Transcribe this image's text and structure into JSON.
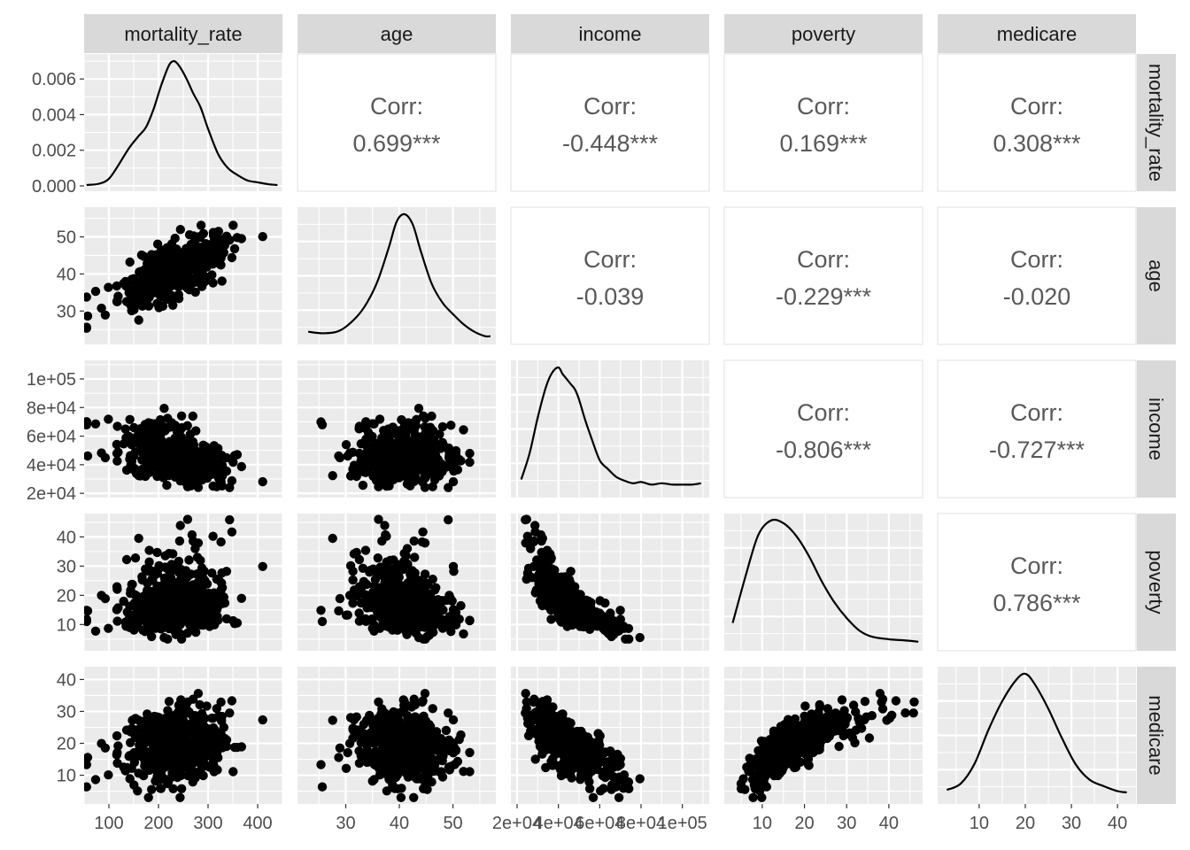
{
  "chart_data": {
    "type": "scatter-matrix",
    "variables": [
      "mortality_rate",
      "age",
      "income",
      "poverty",
      "medicare"
    ],
    "colors": {
      "panel_bg": "#ebebeb",
      "grid": "#ffffff",
      "strip_bg": "#d9d9d9",
      "point": "#000000",
      "corr_text": "#595959",
      "tick_text": "#4d4d4d"
    },
    "axes": {
      "mortality_rate": {
        "range": [
          50,
          450
        ],
        "ticks": [
          100,
          200,
          300,
          400
        ],
        "tick_labels": [
          "100",
          "200",
          "300",
          "400"
        ]
      },
      "age": {
        "range": [
          21,
          58
        ],
        "ticks": [
          30,
          40,
          50
        ],
        "tick_labels": [
          "30",
          "40",
          "50"
        ]
      },
      "income": {
        "range": [
          17000,
          113000
        ],
        "ticks": [
          20000,
          40000,
          60000,
          80000,
          100000
        ],
        "tick_labels": [
          "2e+04",
          "4e+04",
          "6e+04",
          "8e+04",
          "1e+05"
        ]
      },
      "poverty": {
        "range": [
          1,
          48
        ],
        "ticks": [
          10,
          20,
          30,
          40
        ],
        "tick_labels": [
          "10",
          "20",
          "30",
          "40"
        ]
      },
      "medicare": {
        "range": [
          1,
          44
        ],
        "ticks": [
          10,
          20,
          30,
          40
        ],
        "tick_labels": [
          "10",
          "20",
          "30",
          "40"
        ]
      }
    },
    "density_axis": {
      "range": [
        -0.0003,
        0.0074
      ],
      "ticks": [
        0,
        0.002,
        0.004,
        0.006
      ],
      "tick_labels": [
        "0.000",
        "0.002",
        "0.004",
        "0.006"
      ]
    },
    "densities": {
      "mortality_rate": {
        "x": [
          55,
          80,
          100,
          120,
          140,
          160,
          175,
          190,
          205,
          220,
          230,
          240,
          255,
          270,
          285,
          300,
          320,
          340,
          360,
          380,
          400,
          420,
          440
        ],
        "y": [
          5e-05,
          0.00012,
          0.0004,
          0.0012,
          0.0021,
          0.0028,
          0.0033,
          0.0043,
          0.0056,
          0.0067,
          0.007,
          0.0068,
          0.0061,
          0.0052,
          0.0044,
          0.0032,
          0.0018,
          0.001,
          0.0006,
          0.0003,
          0.0002,
          0.0001,
          5e-05
        ]
      },
      "age": {
        "x": [
          23,
          26,
          29,
          32,
          34,
          36,
          38,
          39.5,
          41,
          42.5,
          44,
          46,
          48,
          50,
          52,
          54,
          56,
          57
        ],
        "y": [
          0.05,
          0.04,
          0.06,
          0.15,
          0.25,
          0.4,
          0.62,
          0.8,
          0.85,
          0.78,
          0.6,
          0.38,
          0.25,
          0.17,
          0.1,
          0.05,
          0.02,
          0.02
        ]
      },
      "income": {
        "x": [
          22000,
          26000,
          30000,
          34000,
          37000,
          40000,
          42000,
          44000,
          46000,
          48000,
          50000,
          53000,
          56000,
          60000,
          64000,
          68000,
          72000,
          76000,
          80000,
          85000,
          90000,
          95000,
          100000,
          105000,
          109000
        ],
        "y": [
          0.1,
          0.3,
          0.58,
          0.82,
          0.93,
          0.97,
          0.92,
          0.88,
          0.84,
          0.8,
          0.72,
          0.56,
          0.42,
          0.25,
          0.18,
          0.12,
          0.09,
          0.07,
          0.08,
          0.06,
          0.07,
          0.06,
          0.06,
          0.06,
          0.07
        ]
      },
      "poverty": {
        "x": [
          3,
          6,
          9,
          12,
          15,
          18,
          21,
          24,
          27,
          30,
          33,
          36,
          40,
          44,
          47
        ],
        "y": [
          0.18,
          0.55,
          0.88,
          1.0,
          0.98,
          0.88,
          0.72,
          0.52,
          0.35,
          0.22,
          0.12,
          0.07,
          0.05,
          0.04,
          0.03
        ]
      },
      "medicare": {
        "x": [
          3,
          6,
          9,
          12,
          15,
          18,
          20,
          22,
          25,
          28,
          31,
          34,
          37,
          40,
          42
        ],
        "y": [
          0.07,
          0.12,
          0.28,
          0.55,
          0.78,
          0.95,
          1.0,
          0.92,
          0.72,
          0.48,
          0.27,
          0.15,
          0.1,
          0.06,
          0.05
        ]
      }
    },
    "correlations": [
      {
        "row": "mortality_rate",
        "col": "age",
        "label": "Corr:",
        "value": "0.699***"
      },
      {
        "row": "mortality_rate",
        "col": "income",
        "label": "Corr:",
        "value": "-0.448***"
      },
      {
        "row": "mortality_rate",
        "col": "poverty",
        "label": "Corr:",
        "value": "0.169***"
      },
      {
        "row": "mortality_rate",
        "col": "medicare",
        "label": "Corr:",
        "value": "0.308***"
      },
      {
        "row": "age",
        "col": "income",
        "label": "Corr:",
        "value": "-0.039"
      },
      {
        "row": "age",
        "col": "poverty",
        "label": "Corr:",
        "value": "-0.229***"
      },
      {
        "row": "age",
        "col": "medicare",
        "label": "Corr:",
        "value": "-0.020"
      },
      {
        "row": "income",
        "col": "poverty",
        "label": "Corr:",
        "value": "-0.806***"
      },
      {
        "row": "income",
        "col": "medicare",
        "label": "Corr:",
        "value": "-0.727***"
      },
      {
        "row": "poverty",
        "col": "medicare",
        "label": "Corr:",
        "value": "0.786***"
      }
    ],
    "pair_correlations": {
      "age|mortality_rate": 0.699,
      "income|mortality_rate": -0.448,
      "mortality_rate|poverty": 0.169,
      "medicare|mortality_rate": 0.308,
      "age|income": -0.039,
      "age|poverty": -0.229,
      "age|medicare": -0.02,
      "income|poverty": -0.806,
      "income|medicare": -0.727,
      "medicare|poverty": 0.786
    },
    "scatter_points_per_panel": 520,
    "distribution_parameters": {
      "mortality_rate": {
        "center": 230,
        "spread": 55,
        "min": 55,
        "max": 435
      },
      "age": {
        "center": 41,
        "spread": 4.5,
        "min": 22,
        "max": 57
      },
      "income": {
        "center": 44000,
        "spread": 10000,
        "min": 24000,
        "max": 109000
      },
      "poverty": {
        "center": 16.5,
        "spread": 6.5,
        "min": 3,
        "max": 46
      },
      "medicare": {
        "center": 19.5,
        "spread": 5.5,
        "min": 3,
        "max": 41
      }
    }
  }
}
